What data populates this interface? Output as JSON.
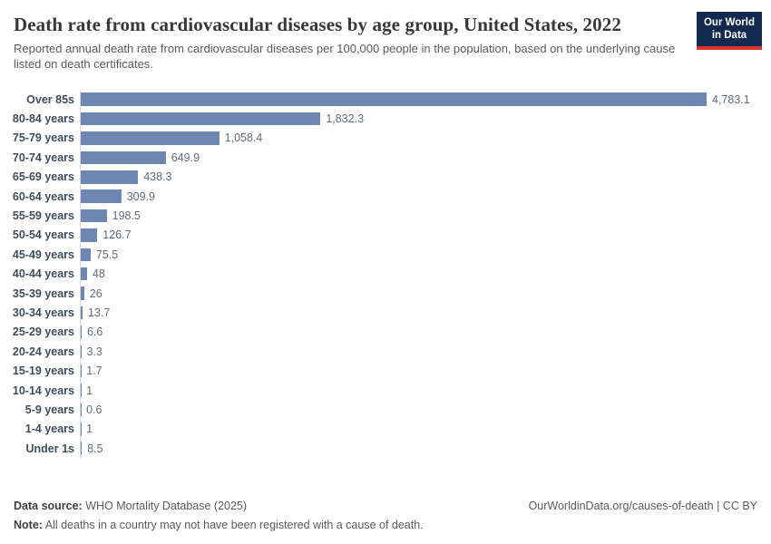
{
  "header": {
    "logo": {
      "line1": "Our World",
      "line2": "in Data"
    }
  },
  "chart_data": {
    "type": "bar",
    "orientation": "horizontal",
    "title": "Death rate from cardiovascular diseases by age group, United States, 2022",
    "subtitle": "Reported annual death rate from cardiovascular diseases per 100,000 people in the population, based on the underlying cause listed on death certificates.",
    "categories": [
      "Over 85s",
      "80-84 years",
      "75-79 years",
      "70-74 years",
      "65-69 years",
      "60-64 years",
      "55-59 years",
      "50-54 years",
      "45-49 years",
      "40-44 years",
      "35-39 years",
      "30-34 years",
      "25-29 years",
      "20-24 years",
      "15-19 years",
      "10-14 years",
      "5-9 years",
      "1-4 years",
      "Under 1s"
    ],
    "values": [
      4783.1,
      1832.3,
      1058.4,
      649.9,
      438.3,
      309.9,
      198.5,
      126.7,
      75.5,
      48,
      26,
      13.7,
      6.6,
      3.3,
      1.7,
      1,
      0.6,
      1,
      8.5
    ],
    "value_labels": [
      "4,783.1",
      "1,832.3",
      "1,058.4",
      "649.9",
      "438.3",
      "309.9",
      "198.5",
      "126.7",
      "75.5",
      "48",
      "26",
      "13.7",
      "6.6",
      "3.3",
      "1.7",
      "1",
      "0.6",
      "1",
      "8.5"
    ],
    "xlim": [
      0,
      4783.1
    ],
    "grid": false,
    "legend": "none",
    "bar_color": "#6d87b2"
  },
  "footer": {
    "source_label": "Data source:",
    "source_text": " WHO Mortality Database (2025)",
    "note_label": "Note:",
    "note_text": " All deaths in a country may not have been registered with a cause of death.",
    "link": "OurWorldinData.org/causes-of-death | CC BY"
  }
}
